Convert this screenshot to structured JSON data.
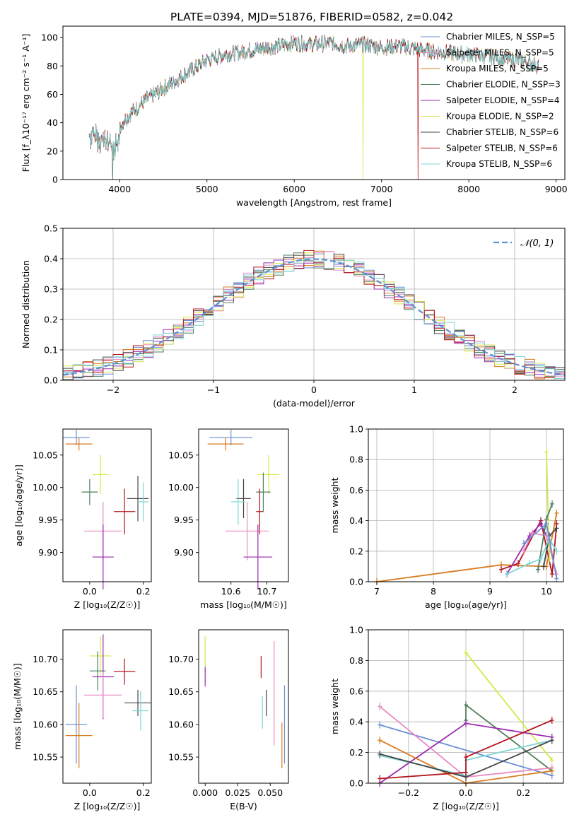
{
  "colors": {
    "Chabrier MILES": "#6b8fd6",
    "Salpeter MILES": "#e88cc4",
    "Kroupa MILES": "#d97b1e",
    "Chabrier ELODIE": "#4f7f5a",
    "Salpeter ELODIE": "#9c2ab0",
    "Kroupa ELODIE": "#d6e84a",
    "Chabrier STELIB": "#444444",
    "Salpeter STELIB": "#b5161e",
    "Kroupa STELIB": "#7fd6d6",
    "normal": "#5b8fd6"
  },
  "chart_data": [
    {
      "id": "spectrum",
      "type": "line",
      "title": "PLATE=0394, MJD=51876, FIBERID=0582, z=0.042",
      "xlabel": "wavelength [Angstrom, rest frame]",
      "ylabel": "Flux [f_λ10⁻¹⁷ erg cm⁻² s⁻¹ A⁻¹]",
      "xlim": [
        3350,
        9100
      ],
      "ylim": [
        0,
        108
      ],
      "xticks": [
        4000,
        5000,
        6000,
        7000,
        8000,
        9000
      ],
      "yticks": [
        0,
        20,
        40,
        60,
        80,
        100
      ],
      "grid": false,
      "legend_position": "top-right",
      "continuum": {
        "x": [
          3650,
          3800,
          3950,
          4050,
          4150,
          4300,
          4450,
          4600,
          4800,
          5000,
          5200,
          5400,
          5600,
          5800,
          6000,
          6200,
          6400,
          6600,
          6800,
          7000,
          7200,
          7400,
          7600,
          7800,
          8000,
          8200,
          8400,
          8600,
          8800
        ],
        "values": [
          38,
          34,
          30,
          42,
          48,
          56,
          62,
          68,
          76,
          84,
          88,
          90,
          92,
          94,
          96,
          95,
          96,
          94,
          95,
          93,
          94,
          92,
          90,
          89,
          88,
          87,
          85,
          84,
          80
        ]
      },
      "series": [
        {
          "name": "Chabrier MILES, N_SSP=5"
        },
        {
          "name": "Salpeter MILES, N_SSP=5"
        },
        {
          "name": "Kroupa MILES, N_SSP=5"
        },
        {
          "name": "Chabrier ELODIE, N_SSP=3"
        },
        {
          "name": "Salpeter ELODIE, N_SSP=4"
        },
        {
          "name": "Kroupa ELODIE, N_SSP=2"
        },
        {
          "name": "Chabrier STELIB, N_SSP=6"
        },
        {
          "name": "Salpeter STELIB, N_SSP=6"
        },
        {
          "name": "Kroupa STELIB, N_SSP=6"
        }
      ],
      "dropouts": [
        3920,
        6790,
        7420
      ]
    },
    {
      "id": "residuals",
      "type": "histogram",
      "xlabel": "(data-model)/error",
      "ylabel": "Normed distribution",
      "xlim": [
        -2.5,
        2.5
      ],
      "ylim": [
        0,
        0.5
      ],
      "xticks": [
        -2,
        -1,
        0,
        1,
        2
      ],
      "yticks": [
        0.0,
        0.1,
        0.2,
        0.3,
        0.4,
        0.5
      ],
      "grid": true,
      "legend": "𝒩(0, 1)",
      "legend_position": "top-right"
    },
    {
      "id": "age_vs_Z",
      "type": "errorbar",
      "xlabel": "Z [log₁₀(Z/Z☉)]",
      "ylabel": "age  [log₁₀(age/yr)]",
      "xlim": [
        -0.1,
        0.23
      ],
      "ylim": [
        9.855,
        10.09
      ],
      "xticks": [
        0.0,
        0.2
      ],
      "yticks": [
        9.9,
        9.95,
        10.0,
        10.05
      ],
      "grid": false,
      "points": [
        {
          "model": "Chabrier MILES",
          "x": -0.05,
          "xerr": 0.05,
          "y": 10.077,
          "yerr": 0.012
        },
        {
          "model": "Kroupa MILES",
          "x": -0.04,
          "xerr": 0.05,
          "y": 10.067,
          "yerr": 0.01
        },
        {
          "model": "Kroupa ELODIE",
          "x": 0.04,
          "xerr": 0.03,
          "y": 10.02,
          "yerr": 0.03
        },
        {
          "model": "Chabrier ELODIE",
          "x": 0.0,
          "xerr": 0.03,
          "y": 9.993,
          "yerr": 0.02
        },
        {
          "model": "Salpeter STELIB",
          "x": 0.13,
          "xerr": 0.04,
          "y": 9.963,
          "yerr": 0.035
        },
        {
          "model": "Chabrier STELIB",
          "x": 0.18,
          "xerr": 0.04,
          "y": 9.983,
          "yerr": 0.035
        },
        {
          "model": "Kroupa STELIB",
          "x": 0.2,
          "xerr": 0.02,
          "y": 9.978,
          "yerr": 0.03
        },
        {
          "model": "Salpeter MILES",
          "x": 0.05,
          "xerr": 0.07,
          "y": 9.933,
          "yerr": 0.045
        },
        {
          "model": "Salpeter ELODIE",
          "x": 0.05,
          "xerr": 0.04,
          "y": 9.893,
          "yerr": 0.05
        }
      ]
    },
    {
      "id": "age_vs_mass",
      "type": "errorbar",
      "xlabel": "mass [log₁₀(M/M☉)]",
      "ylabel": "",
      "xlim": [
        10.51,
        10.76
      ],
      "ylim": [
        9.855,
        10.09
      ],
      "xticks": [
        10.6,
        10.7
      ],
      "yticks": [
        9.9,
        9.95,
        10.0,
        10.05
      ],
      "grid": false,
      "points": [
        {
          "model": "Chabrier MILES",
          "x": 10.6,
          "xerr": 0.06,
          "y": 10.077,
          "yerr": 0.012
        },
        {
          "model": "Kroupa MILES",
          "x": 10.585,
          "xerr": 0.05,
          "y": 10.067,
          "yerr": 0.01
        },
        {
          "model": "Kroupa ELODIE",
          "x": 10.705,
          "xerr": 0.03,
          "y": 10.02,
          "yerr": 0.03
        },
        {
          "model": "Chabrier ELODIE",
          "x": 10.69,
          "xerr": 0.02,
          "y": 9.993,
          "yerr": 0.03
        },
        {
          "model": "Chabrier STELIB",
          "x": 10.635,
          "xerr": 0.02,
          "y": 9.983,
          "yerr": 0.03
        },
        {
          "model": "Kroupa STELIB",
          "x": 10.62,
          "xerr": 0.02,
          "y": 9.978,
          "yerr": 0.035
        },
        {
          "model": "Salpeter STELIB",
          "x": 10.68,
          "xerr": 0.01,
          "y": 9.963,
          "yerr": 0.035
        },
        {
          "model": "Salpeter MILES",
          "x": 10.645,
          "xerr": 0.06,
          "y": 9.933,
          "yerr": 0.045
        },
        {
          "model": "Salpeter ELODIE",
          "x": 10.675,
          "xerr": 0.04,
          "y": 9.893,
          "yerr": 0.05
        }
      ]
    },
    {
      "id": "massweight_vs_age",
      "type": "line",
      "xlabel": "age  [log₁₀(age/yr)]",
      "ylabel": "mass weight",
      "xlim": [
        6.85,
        10.3
      ],
      "ylim": [
        0,
        1.0
      ],
      "xticks": [
        7,
        8,
        9,
        10
      ],
      "yticks": [
        0.0,
        0.2,
        0.4,
        0.6,
        0.8,
        1.0
      ],
      "grid": true,
      "series": [
        {
          "model": "Kroupa MILES",
          "x": [
            7.0,
            9.2,
            10.0,
            10.18
          ],
          "y": [
            0.0,
            0.11,
            0.1,
            0.45
          ]
        },
        {
          "model": "Salpeter STELIB",
          "x": [
            9.2,
            9.5,
            9.9,
            10.1,
            10.18
          ],
          "y": [
            0.08,
            0.12,
            0.4,
            0.05,
            0.38
          ]
        },
        {
          "model": "Salpeter ELODIE",
          "x": [
            9.3,
            9.7,
            9.9,
            10.0
          ],
          "y": [
            0.05,
            0.3,
            0.38,
            0.3
          ]
        },
        {
          "model": "Salpeter MILES",
          "x": [
            9.6,
            9.75,
            10.0,
            10.18
          ],
          "y": [
            0.2,
            0.32,
            0.3,
            0.05
          ]
        },
        {
          "model": "Kroupa ELODIE",
          "x": [
            10.0,
            10.05
          ],
          "y": [
            0.85,
            0.15
          ]
        },
        {
          "model": "Chabrier ELODIE",
          "x": [
            9.85,
            10.0,
            10.1
          ],
          "y": [
            0.08,
            0.41,
            0.51
          ]
        },
        {
          "model": "Chabrier STELIB",
          "x": [
            9.95,
            10.05,
            10.18
          ],
          "y": [
            0.1,
            0.3,
            0.35
          ]
        },
        {
          "model": "Kroupa STELIB",
          "x": [
            9.3,
            9.7,
            9.9,
            10.05,
            10.18
          ],
          "y": [
            0.05,
            0.12,
            0.15,
            0.28,
            0.2
          ]
        },
        {
          "model": "Chabrier MILES",
          "x": [
            9.6,
            10.0,
            10.18
          ],
          "y": [
            0.25,
            0.38,
            0.02
          ]
        }
      ]
    },
    {
      "id": "mass_vs_Z",
      "type": "errorbar",
      "xlabel": "Z [log₁₀(Z/Z☉)]",
      "ylabel": "mass [log₁₀(M/M☉)]",
      "xlim": [
        -0.1,
        0.23
      ],
      "ylim": [
        10.51,
        10.745
      ],
      "xticks": [
        0.0,
        0.2
      ],
      "yticks": [
        10.55,
        10.6,
        10.65,
        10.7
      ],
      "grid": false,
      "points": [
        {
          "model": "Kroupa ELODIE",
          "x": 0.04,
          "xerr": 0.04,
          "y": 10.705,
          "yerr": 0.03
        },
        {
          "model": "Chabrier ELODIE",
          "x": 0.03,
          "xerr": 0.03,
          "y": 10.682,
          "yerr": 0.03
        },
        {
          "model": "Salpeter ELODIE",
          "x": 0.05,
          "xerr": 0.04,
          "y": 10.673,
          "yerr": 0.065
        },
        {
          "model": "Salpeter STELIB",
          "x": 0.13,
          "xerr": 0.04,
          "y": 10.681,
          "yerr": 0.02
        },
        {
          "model": "Salpeter MILES",
          "x": 0.05,
          "xerr": 0.07,
          "y": 10.645,
          "yerr": 0.035
        },
        {
          "model": "Chabrier STELIB",
          "x": 0.18,
          "xerr": 0.05,
          "y": 10.633,
          "yerr": 0.02
        },
        {
          "model": "Kroupa STELIB",
          "x": 0.19,
          "xerr": 0.03,
          "y": 10.621,
          "yerr": 0.03
        },
        {
          "model": "Chabrier MILES",
          "x": -0.05,
          "xerr": 0.04,
          "y": 10.6,
          "yerr": 0.06
        },
        {
          "model": "Kroupa MILES",
          "x": -0.04,
          "xerr": 0.05,
          "y": 10.583,
          "yerr": 0.05
        }
      ]
    },
    {
      "id": "mass_vs_EBV",
      "type": "errorbar",
      "xlabel": "E(B-V)",
      "ylabel": "",
      "xlim": [
        -0.005,
        0.064
      ],
      "ylim": [
        10.51,
        10.745
      ],
      "xticks": [
        0.0,
        0.025,
        0.05
      ],
      "yticks": [
        10.55,
        10.6,
        10.65,
        10.7
      ],
      "grid": false,
      "points": [
        {
          "model": "Kroupa ELODIE",
          "x": 0.0,
          "y": 10.705,
          "yerr": 0.03
        },
        {
          "model": "Salpeter ELODIE",
          "x": 0.0,
          "y": 10.673,
          "yerr": 0.015
        },
        {
          "model": "Salpeter STELIB",
          "x": 0.043,
          "y": 10.688,
          "yerr": 0.017
        },
        {
          "model": "Salpeter MILES",
          "x": 0.053,
          "y": 10.648,
          "yerr": 0.08
        },
        {
          "model": "Kroupa STELIB",
          "x": 0.044,
          "y": 10.618,
          "yerr": 0.025
        },
        {
          "model": "Chabrier STELIB",
          "x": 0.047,
          "y": 10.633,
          "yerr": 0.02
        },
        {
          "model": "Chabrier MILES",
          "x": 0.061,
          "y": 10.6,
          "yerr": 0.06
        },
        {
          "model": "Kroupa MILES",
          "x": 0.059,
          "y": 10.568,
          "yerr": 0.035
        }
      ]
    },
    {
      "id": "massweight_vs_Z",
      "type": "line",
      "xlabel": "Z [log₁₀(Z/Z☉)]",
      "ylabel": "mass weight",
      "xlim": [
        -0.34,
        0.34
      ],
      "ylim": [
        0,
        1.0
      ],
      "xticks": [
        -0.2,
        0.0,
        0.2
      ],
      "yticks": [
        0.0,
        0.2,
        0.4,
        0.6,
        0.8,
        1.0
      ],
      "grid": true,
      "series": [
        {
          "model": "Kroupa ELODIE",
          "x": [
            0.0,
            0.3
          ],
          "y": [
            0.85,
            0.15
          ]
        },
        {
          "model": "Chabrier ELODIE",
          "x": [
            0.0,
            0.0,
            0.3
          ],
          "y": [
            0.41,
            0.51,
            0.08
          ]
        },
        {
          "model": "Chabrier MILES",
          "x": [
            -0.3,
            0.3
          ],
          "y": [
            0.38,
            0.05
          ]
        },
        {
          "model": "Salpeter ELODIE",
          "x": [
            -0.3,
            0.0,
            0.3
          ],
          "y": [
            0.0,
            0.39,
            0.3
          ]
        },
        {
          "model": "Salpeter MILES",
          "x": [
            -0.3,
            0.0,
            0.3
          ],
          "y": [
            0.5,
            0.04,
            0.1
          ]
        },
        {
          "model": "Kroupa MILES",
          "x": [
            -0.3,
            0.0,
            0.3
          ],
          "y": [
            0.28,
            0.0,
            0.08
          ]
        },
        {
          "model": "Kroupa STELIB",
          "x": [
            -0.3,
            0.0,
            0.0,
            0.3
          ],
          "y": [
            0.18,
            0.05,
            0.15,
            0.28
          ]
        },
        {
          "model": "Chabrier STELIB",
          "x": [
            -0.3,
            0.0,
            0.3
          ],
          "y": [
            0.19,
            0.04,
            0.28
          ]
        },
        {
          "model": "Salpeter STELIB",
          "x": [
            -0.3,
            0.0,
            0.0,
            0.3
          ],
          "y": [
            0.03,
            0.07,
            0.17,
            0.41
          ]
        }
      ]
    }
  ]
}
